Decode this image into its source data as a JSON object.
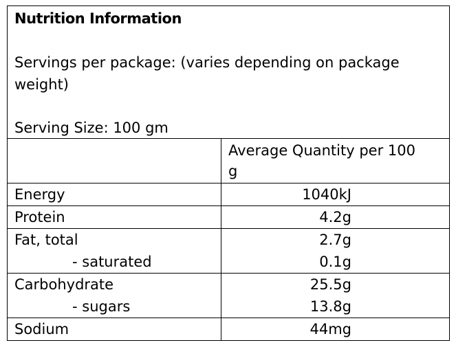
{
  "title": "Nutrition Information",
  "servings": "Servings per package: (varies depending on package weight)",
  "serving_size": "Serving Size: 100 gm",
  "table": {
    "header": "Average Quantity per 100 g",
    "rows": [
      {
        "name": "Energy",
        "value": "1040kJ"
      },
      {
        "name": "Protein",
        "value": "4.2g"
      },
      {
        "name": "Fat, total",
        "value": "2.7g",
        "sub": {
          "name": "- saturated",
          "value": "0.1g"
        }
      },
      {
        "name": "Carbohydrate",
        "value": "25.5g",
        "sub": {
          "name": "- sugars",
          "value": "13.8g"
        }
      },
      {
        "name": "Sodium",
        "value": "44mg"
      }
    ]
  }
}
